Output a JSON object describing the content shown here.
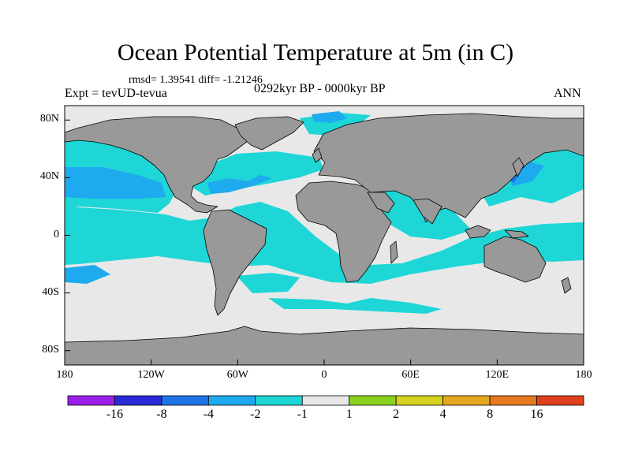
{
  "title": "Ocean Potential Temperature at 5m (in C)",
  "stats": "rmsd= 1.39541  diff= -1.21246",
  "experiment": "Expt = tevUD-tevua",
  "period": "0292kyr BP - 0000kyr BP",
  "season": "ANN",
  "lat_ticks": [
    {
      "value": 80,
      "label": "80N"
    },
    {
      "value": 40,
      "label": "40N"
    },
    {
      "value": 0,
      "label": "0"
    },
    {
      "value": -40,
      "label": "40S"
    },
    {
      "value": -80,
      "label": "80S"
    }
  ],
  "lon_ticks": [
    {
      "value": -180,
      "label": "180"
    },
    {
      "value": -120,
      "label": "120W"
    },
    {
      "value": -60,
      "label": "60W"
    },
    {
      "value": 0,
      "label": "0"
    },
    {
      "value": 60,
      "label": "60E"
    },
    {
      "value": 120,
      "label": "120E"
    },
    {
      "value": 180,
      "label": "180"
    }
  ],
  "colorbar": {
    "colors": [
      "#9a1ee8",
      "#2a2ad8",
      "#1e74e6",
      "#1eaaee",
      "#1ed6d6",
      "#e8e8e8",
      "#8ad21e",
      "#d6d21e",
      "#e6a81e",
      "#e6781e",
      "#e0401e"
    ],
    "labels": [
      "-16",
      "-8",
      "-4",
      "-2",
      "-1",
      "1",
      "2",
      "4",
      "8",
      "16"
    ]
  },
  "colors": {
    "land": "#999999",
    "near_zero": "#e8e8e8",
    "cyan": "#1ed6d6",
    "light_blue": "#1eaaee",
    "blue": "#1e74e6",
    "dark_blue": "#2a2ad8"
  }
}
